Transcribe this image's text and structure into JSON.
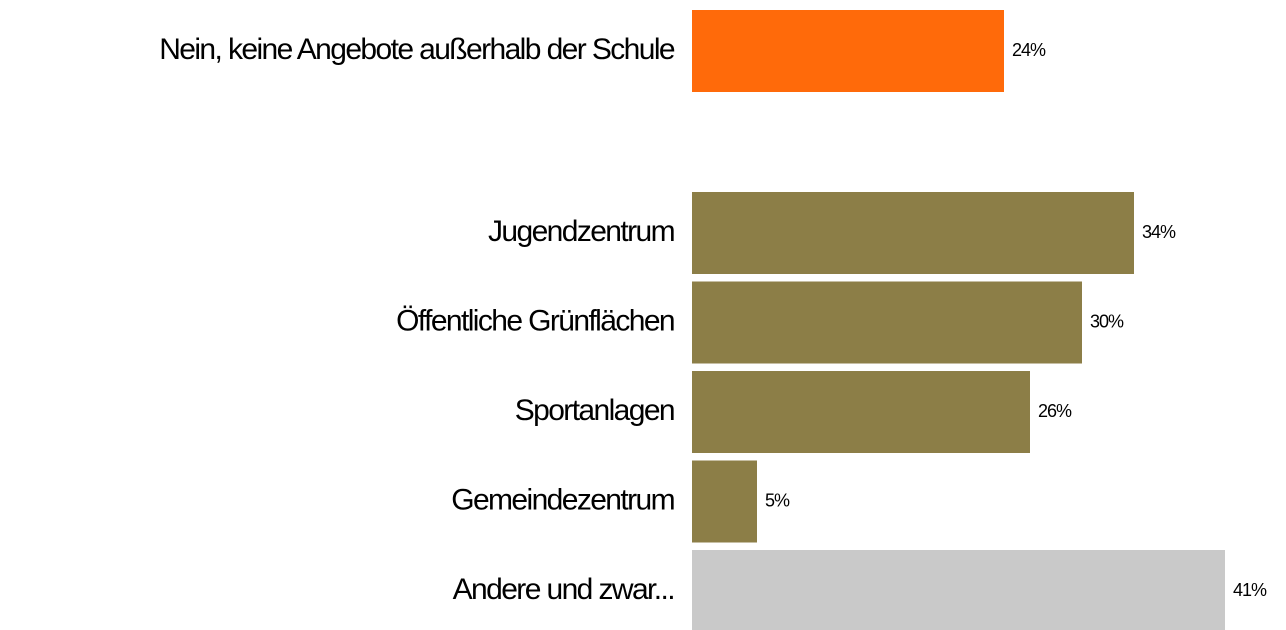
{
  "chart_data": {
    "type": "bar",
    "orientation": "horizontal",
    "categories": [
      "Nein, keine Angebote außerhalb der Schule",
      "Jugendzentrum",
      "Öffentliche Grünflächen",
      "Sportanlagen",
      "Gemeindezentrum",
      "Andere und zwar..."
    ],
    "values": [
      24,
      34,
      30,
      26,
      5,
      41
    ],
    "value_labels": [
      "24%",
      "34%",
      "30%",
      "26%",
      "5%",
      "41%"
    ],
    "colors": [
      "#ff6a0a",
      "#8c7e47",
      "#8c7e47",
      "#8c7e47",
      "#8c7e47",
      "#c9c9c9"
    ]
  }
}
